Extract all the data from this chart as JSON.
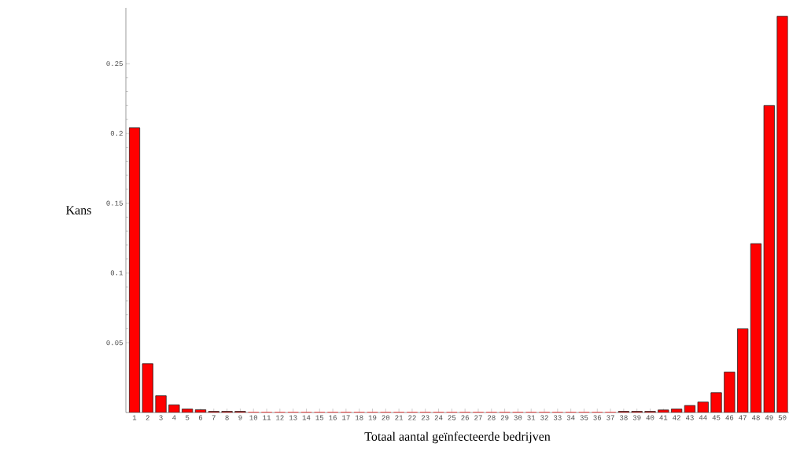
{
  "chart_data": {
    "type": "bar",
    "xlabel": "Totaal aantal geïnfecteerde bedrijven",
    "ylabel": "Kans",
    "categories": [
      "1",
      "2",
      "3",
      "4",
      "5",
      "6",
      "7",
      "8",
      "9",
      "10",
      "11",
      "12",
      "13",
      "14",
      "15",
      "16",
      "17",
      "18",
      "19",
      "20",
      "21",
      "22",
      "23",
      "24",
      "25",
      "26",
      "27",
      "28",
      "29",
      "30",
      "31",
      "32",
      "33",
      "34",
      "35",
      "36",
      "37",
      "38",
      "39",
      "40",
      "41",
      "42",
      "43",
      "44",
      "45",
      "46",
      "47",
      "48",
      "49",
      "50"
    ],
    "values": [
      0.204,
      0.035,
      0.012,
      0.0055,
      0.0025,
      0.002,
      0.0008,
      0.0008,
      0.0008,
      0,
      0,
      0,
      0,
      0,
      0,
      0,
      0,
      0,
      0,
      0,
      0,
      0,
      0,
      0,
      0,
      0,
      0,
      0,
      0,
      0,
      0,
      0,
      0,
      0,
      0,
      0,
      0,
      0.0008,
      0.0008,
      0.0008,
      0.0018,
      0.0025,
      0.005,
      0.0075,
      0.0142,
      0.029,
      0.06,
      0.121,
      0.22,
      0.284
    ],
    "color": "#ff0000",
    "ylim": [
      0,
      0.29
    ],
    "yticks": [
      0.05,
      0.1,
      0.15,
      0.2,
      0.25
    ],
    "grid": false
  }
}
